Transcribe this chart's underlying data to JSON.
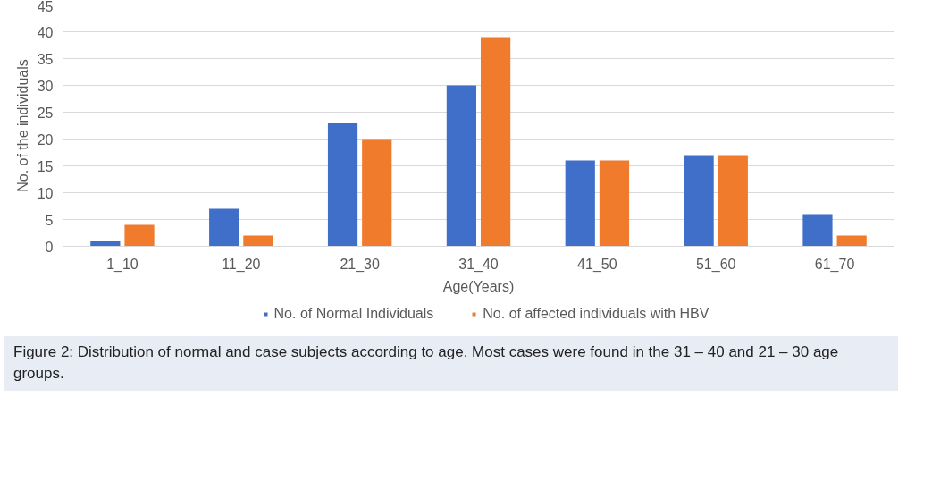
{
  "chart_data": {
    "type": "bar",
    "categories": [
      "1_10",
      "11_20",
      "21_30",
      "31_40",
      "41_50",
      "51_60",
      "61_70"
    ],
    "series": [
      {
        "name": "No. of Normal Individuals",
        "color": "#3f6fc9",
        "values": [
          1,
          7,
          23,
          30,
          16,
          17,
          6
        ]
      },
      {
        "name": "No. of affected individuals with HBV",
        "color": "#f07b2c",
        "values": [
          4,
          2,
          20,
          39,
          16,
          17,
          2
        ]
      }
    ],
    "xlabel": "Age(Years)",
    "ylabel": "No. of the individuals",
    "ylim": [
      0,
      45
    ],
    "yticks": [
      0,
      5,
      10,
      15,
      20,
      25,
      30,
      35,
      40,
      45
    ],
    "grid": "y",
    "legend": "bottom",
    "annotations": [
      "Figure 2: Distribution of normal and case subjects according to age. Most cases were found in the 31 – 40 and 21 – 30 age groups."
    ]
  }
}
